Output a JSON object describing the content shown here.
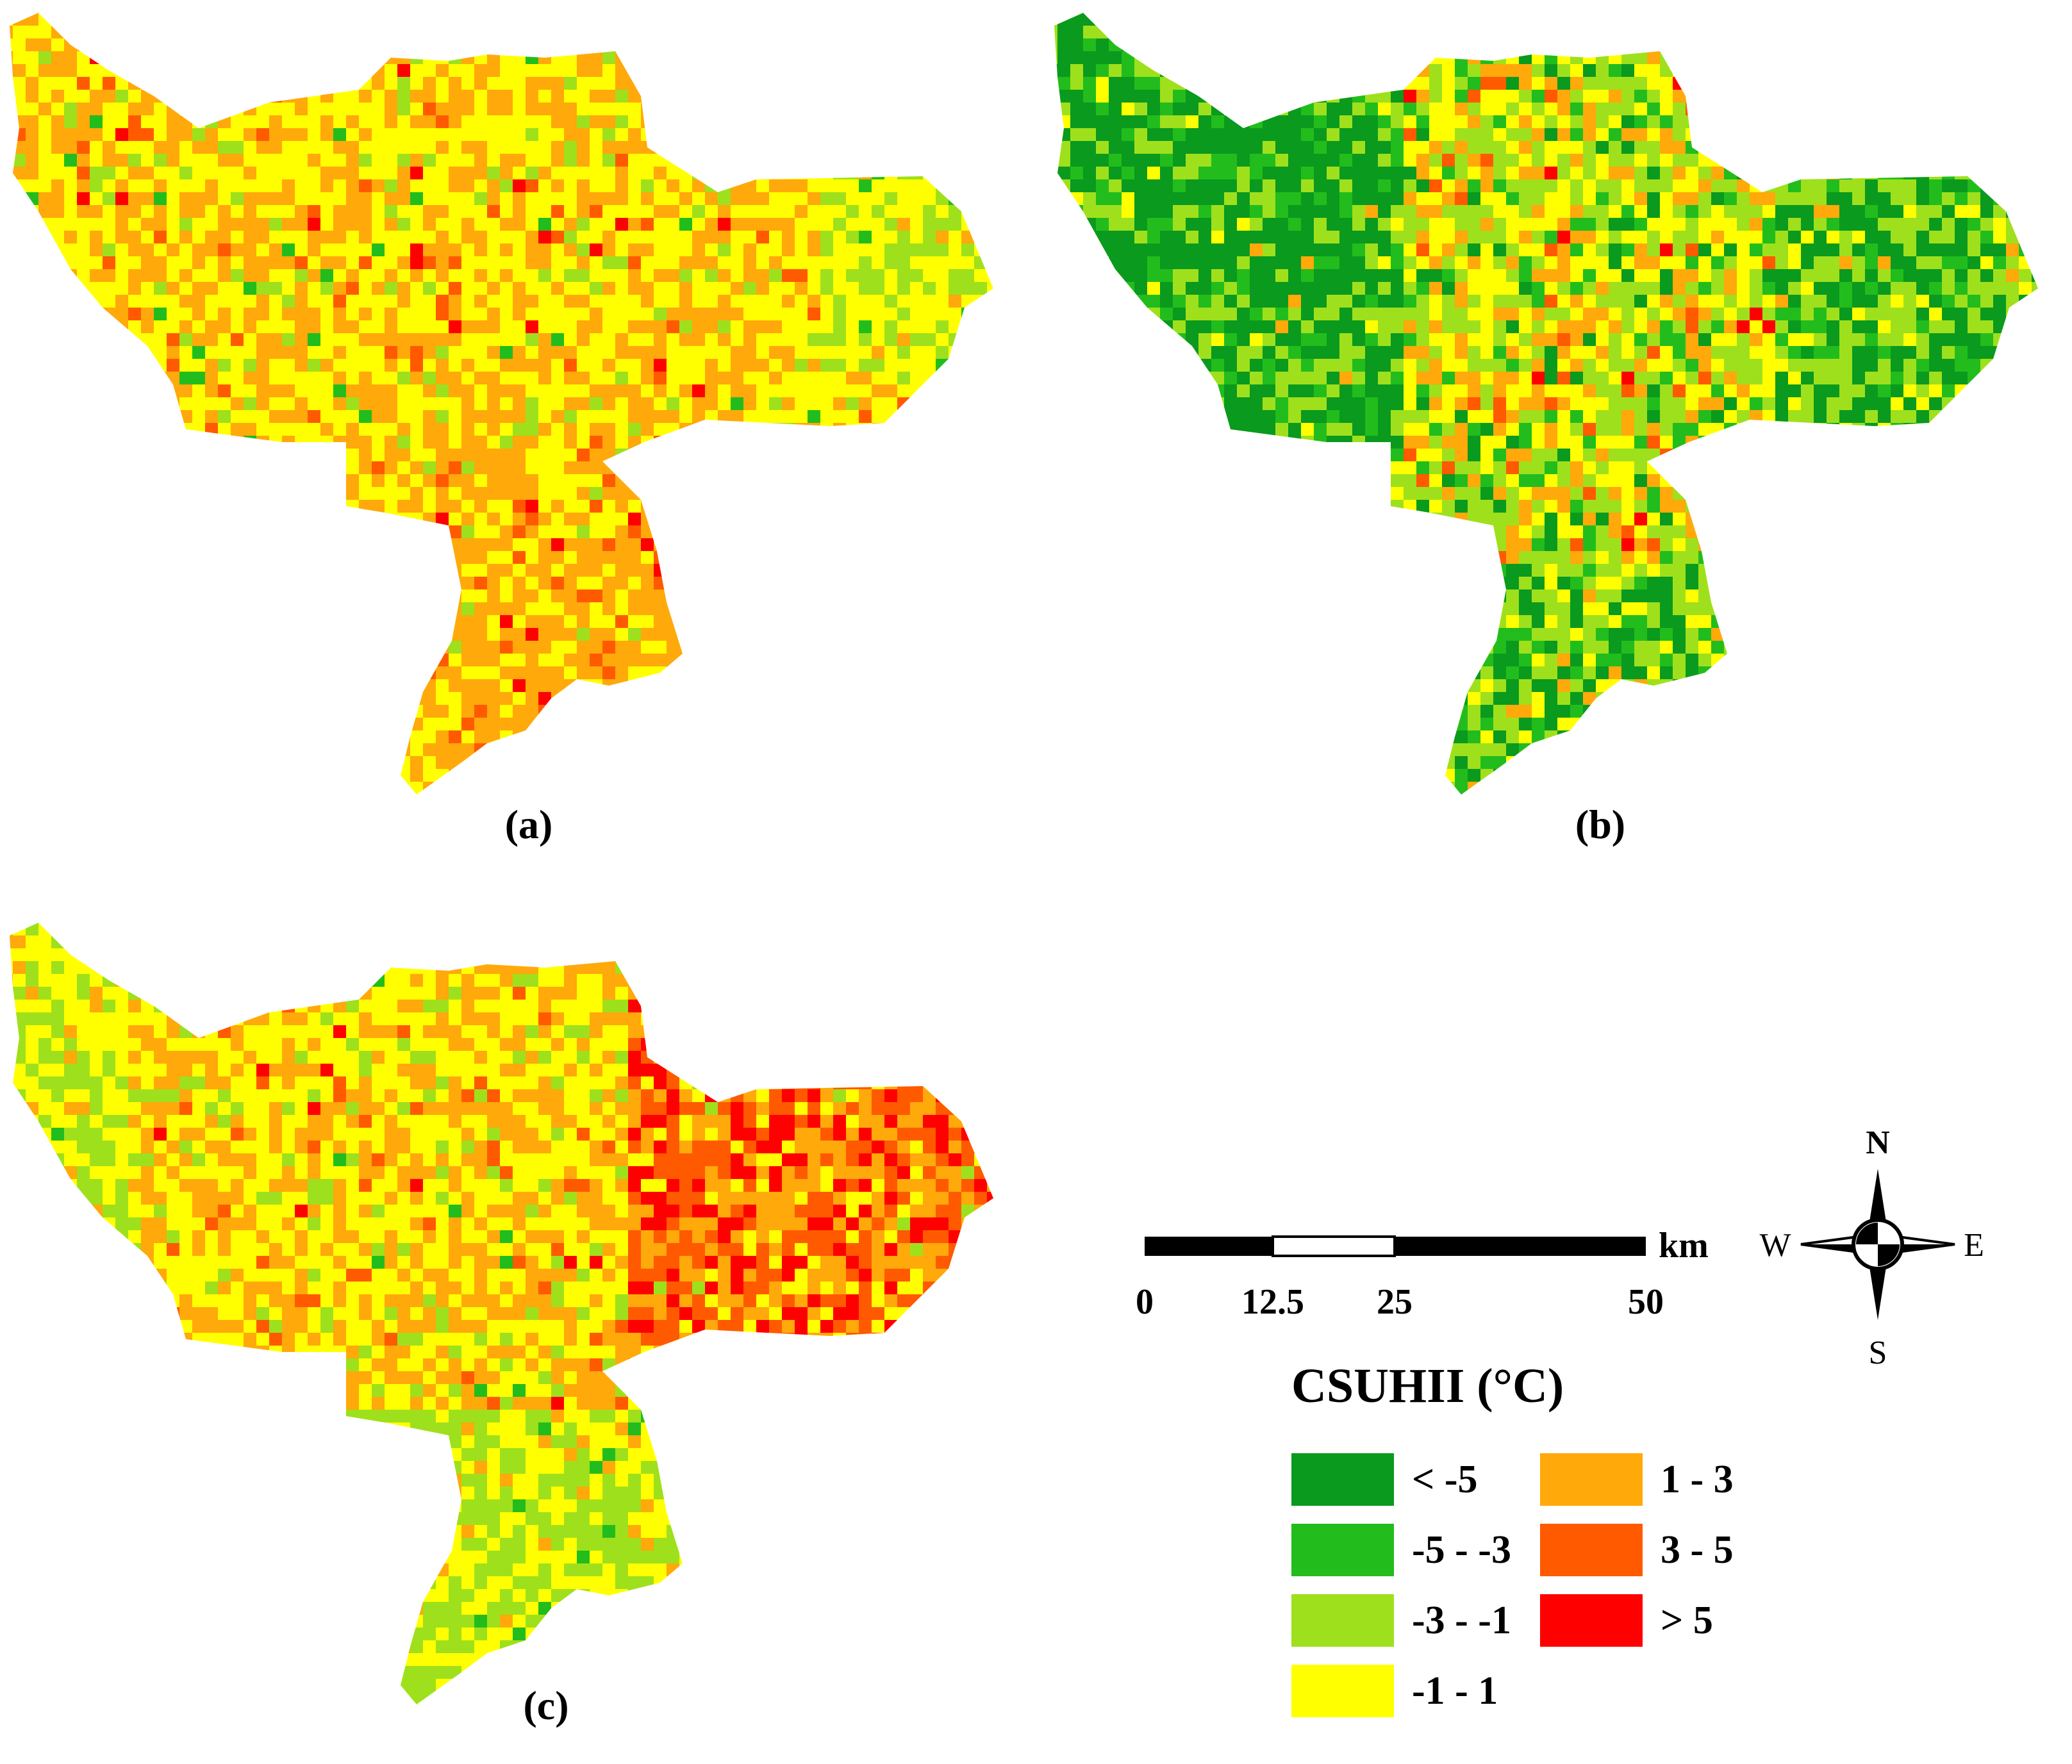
{
  "panels": [
    {
      "id": "a",
      "label": "(a)",
      "scheme": "a"
    },
    {
      "id": "b",
      "label": "(b)",
      "scheme": "b"
    },
    {
      "id": "c",
      "label": "(c)",
      "scheme": "c"
    }
  ],
  "scale_bar": {
    "ticks": [
      "0",
      "12.5",
      "25",
      "50"
    ],
    "unit": "km"
  },
  "compass": {
    "n": "N",
    "s": "S",
    "e": "E",
    "w": "W"
  },
  "legend": {
    "title": "CSUHII (°C)",
    "items": [
      {
        "label": "< -5",
        "color": "#0a9a1e"
      },
      {
        "label": "-5 - -3",
        "color": "#22bd1c"
      },
      {
        "label": "-3 - -1",
        "color": "#9fe01c"
      },
      {
        "label": "-1 - 1",
        "color": "#ffff00"
      },
      {
        "label": "1 - 3",
        "color": "#ffa90a"
      },
      {
        "label": "3 - 5",
        "color": "#ff5a00"
      },
      {
        "label": "> 5",
        "color": "#ff0000"
      }
    ]
  }
}
